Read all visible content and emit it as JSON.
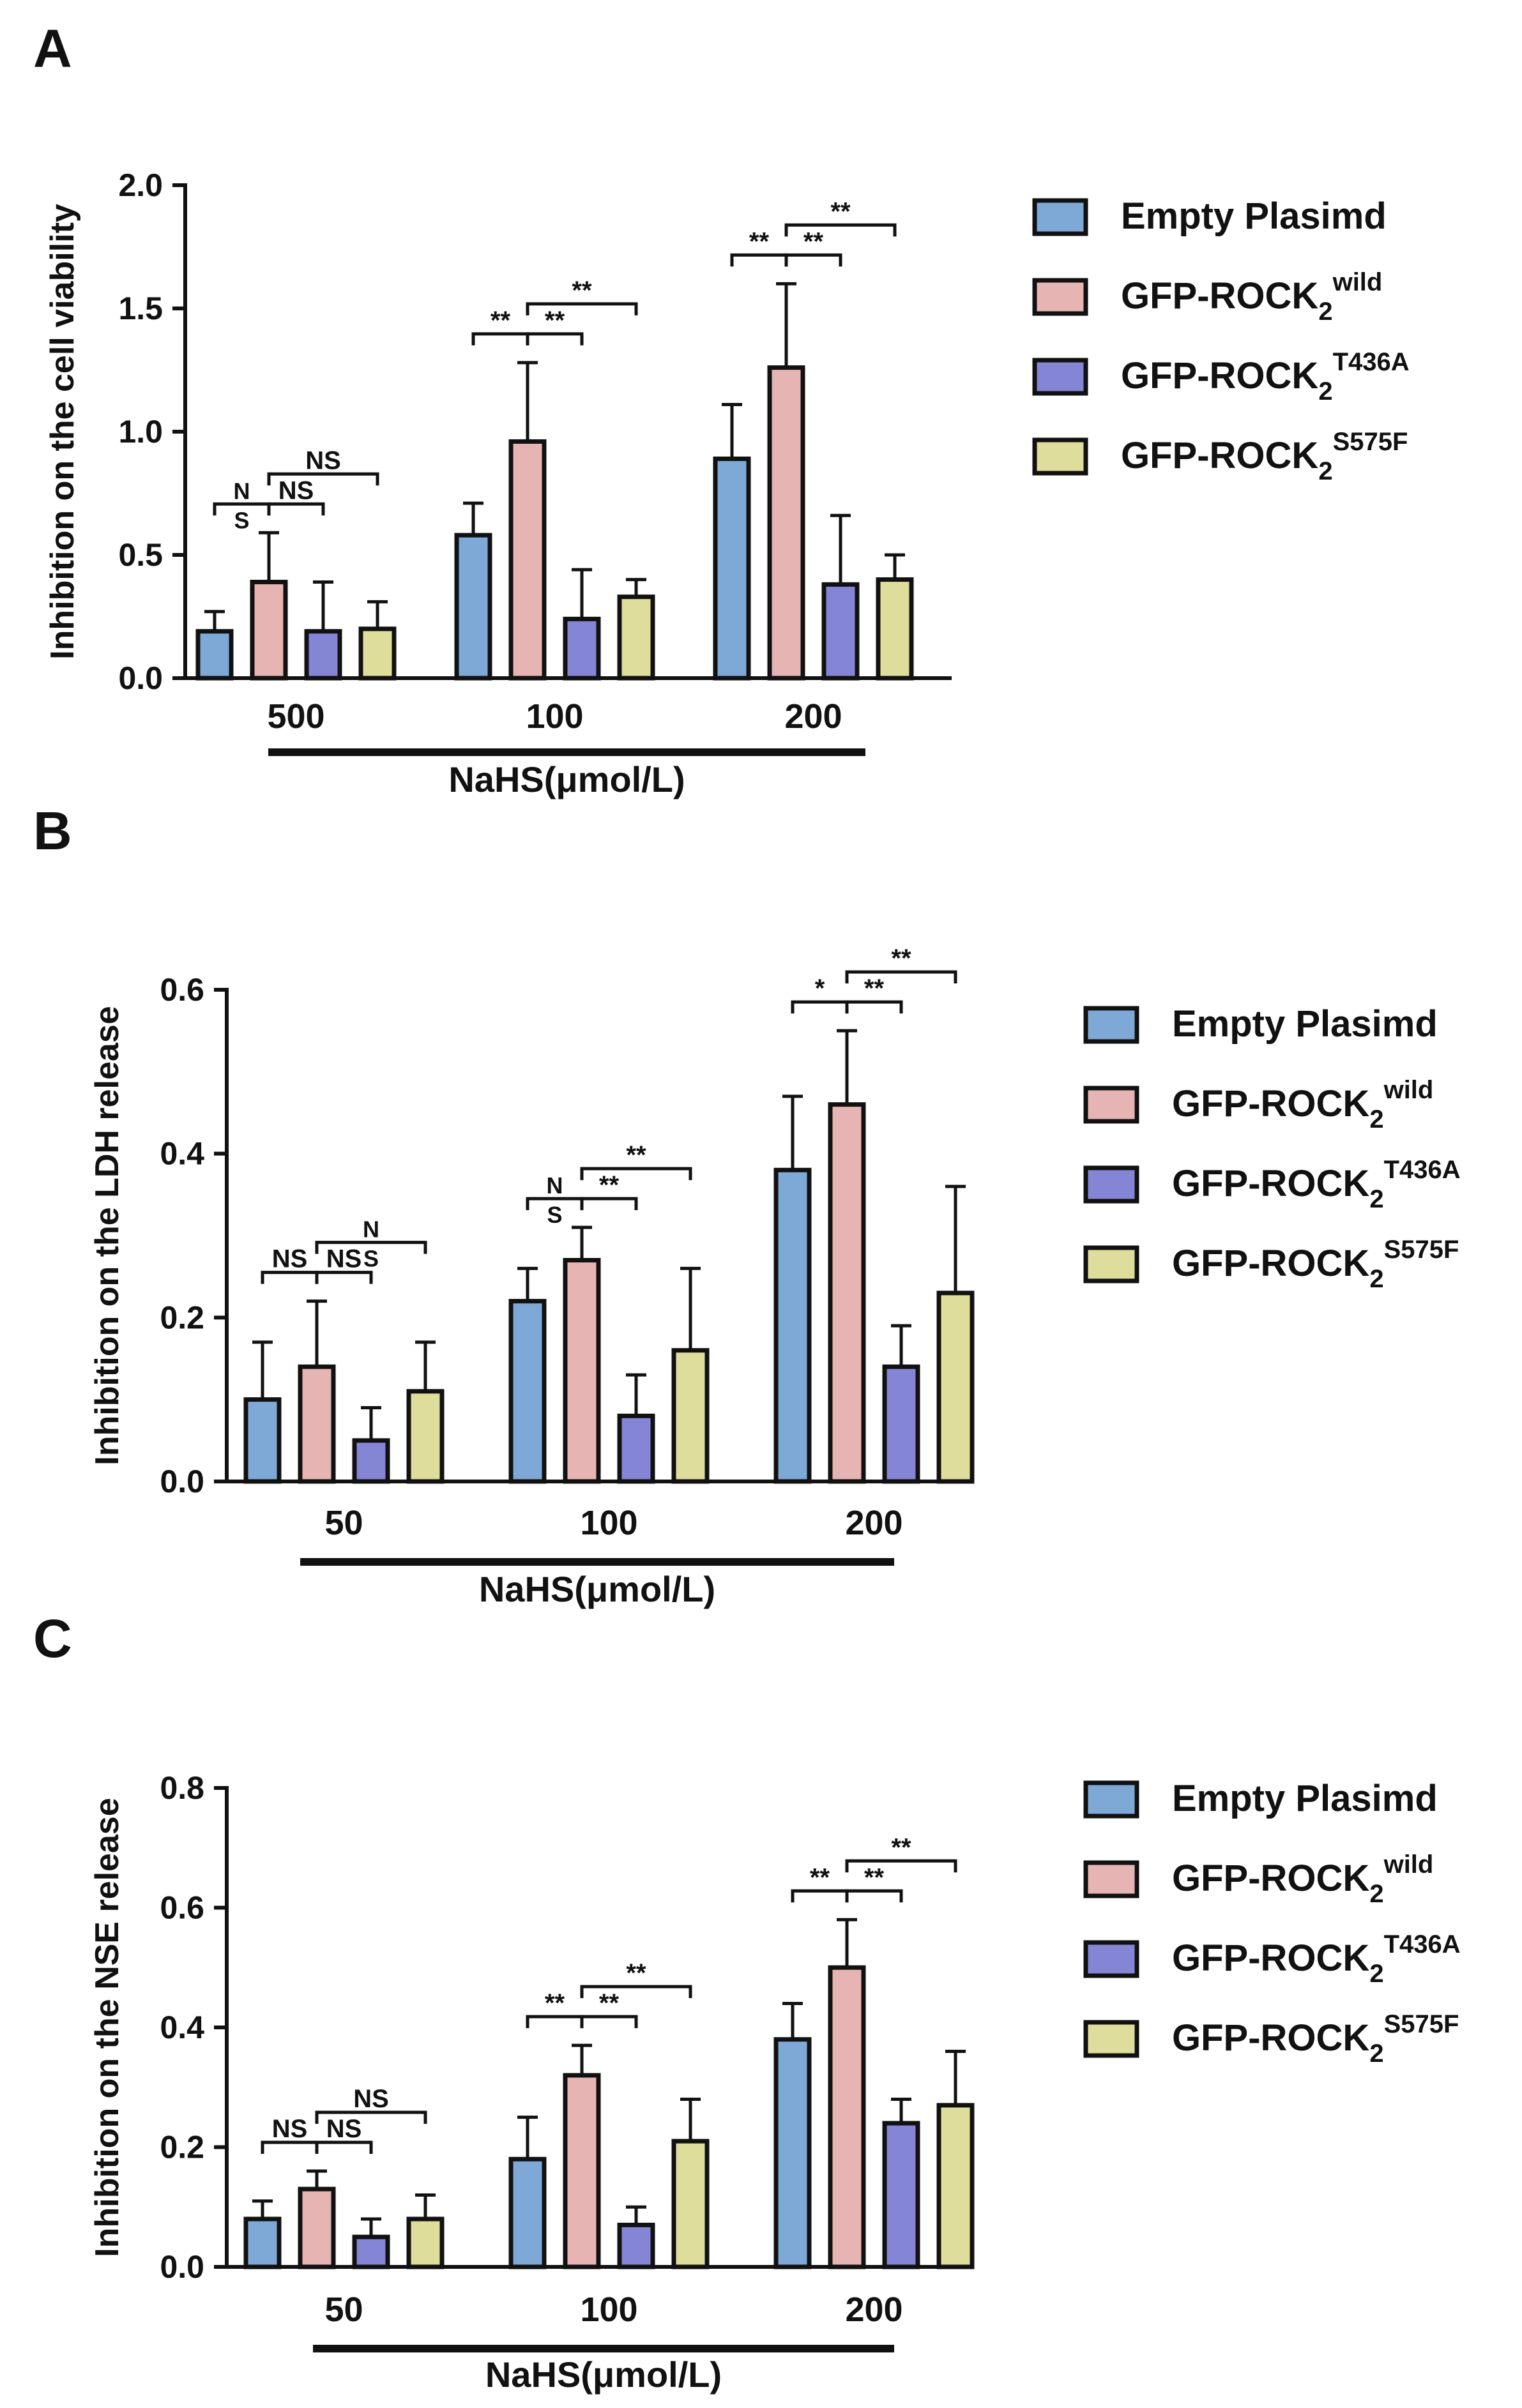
{
  "figure": {
    "x_title": "NaHS(μmol/L)",
    "legend": [
      {
        "base": "Empty Plasimd",
        "sup": ""
      },
      {
        "base": "GFP-ROCK",
        "sub": "2",
        "sup": "wild"
      },
      {
        "base": "GFP-ROCK",
        "sub": "2",
        "sup": "T436A"
      },
      {
        "base": "GFP-ROCK",
        "sub": "2",
        "sup": "S575F"
      }
    ],
    "colors": [
      "#7ea9d6",
      "#e6b5b3",
      "#8585d6",
      "#dedd9c"
    ]
  },
  "chart_data": [
    {
      "panel": "A",
      "type": "bar",
      "ylabel": "Inhibition on the cell viability",
      "xlabel": "NaHS(μmol/L)",
      "ylim": [
        0,
        2.0
      ],
      "yticks": [
        "0.0",
        "0.5",
        "1.0",
        "1.5",
        "2.0"
      ],
      "categories": [
        "500",
        "100",
        "200"
      ],
      "series": [
        {
          "name": "Empty Plasimd",
          "values": [
            0.19,
            0.58,
            0.89
          ],
          "errors": [
            0.08,
            0.13,
            0.22
          ]
        },
        {
          "name": "GFP-ROCK2 wild",
          "values": [
            0.39,
            0.96,
            1.26
          ],
          "errors": [
            0.2,
            0.32,
            0.34
          ]
        },
        {
          "name": "GFP-ROCK2 T436A",
          "values": [
            0.19,
            0.24,
            0.38
          ],
          "errors": [
            0.2,
            0.2,
            0.28
          ]
        },
        {
          "name": "GFP-ROCK2 S575F",
          "values": [
            0.2,
            0.33,
            0.4
          ],
          "errors": [
            0.11,
            0.07,
            0.1
          ]
        }
      ],
      "annotations": [
        {
          "group": 0,
          "from": 0,
          "to": 1,
          "level": 0,
          "label": "N\nS"
        },
        {
          "group": 0,
          "from": 1,
          "to": 2,
          "level": 0,
          "label": "NS"
        },
        {
          "group": 0,
          "from": 1,
          "to": 3,
          "level": 1,
          "label": "NS"
        },
        {
          "group": 1,
          "from": 0,
          "to": 1,
          "level": 0,
          "label": "**"
        },
        {
          "group": 1,
          "from": 1,
          "to": 2,
          "level": 0,
          "label": "**"
        },
        {
          "group": 1,
          "from": 1,
          "to": 3,
          "level": 1,
          "label": "**"
        },
        {
          "group": 2,
          "from": 0,
          "to": 1,
          "level": 0,
          "label": "**"
        },
        {
          "group": 2,
          "from": 1,
          "to": 2,
          "level": 0,
          "label": "**"
        },
        {
          "group": 2,
          "from": 1,
          "to": 3,
          "level": 1,
          "label": "**"
        }
      ]
    },
    {
      "panel": "B",
      "type": "bar",
      "ylabel": "Inhibition on the LDH release",
      "xlabel": "NaHS(μmol/L)",
      "ylim": [
        0,
        0.6
      ],
      "yticks": [
        "0.0",
        "0.2",
        "0.4",
        "0.6"
      ],
      "categories": [
        "50",
        "100",
        "200"
      ],
      "series": [
        {
          "name": "Empty Plasimd",
          "values": [
            0.1,
            0.22,
            0.38
          ],
          "errors": [
            0.07,
            0.04,
            0.09
          ]
        },
        {
          "name": "GFP-ROCK2 wild",
          "values": [
            0.14,
            0.27,
            0.46
          ],
          "errors": [
            0.08,
            0.04,
            0.09
          ]
        },
        {
          "name": "GFP-ROCK2 T436A",
          "values": [
            0.05,
            0.08,
            0.14
          ],
          "errors": [
            0.04,
            0.05,
            0.05
          ]
        },
        {
          "name": "GFP-ROCK2 S575F",
          "values": [
            0.11,
            0.16,
            0.23
          ],
          "errors": [
            0.06,
            0.1,
            0.13
          ]
        }
      ],
      "annotations": [
        {
          "group": 0,
          "from": 0,
          "to": 1,
          "level": 0,
          "label": "NS"
        },
        {
          "group": 0,
          "from": 1,
          "to": 2,
          "level": 0,
          "label": "NS"
        },
        {
          "group": 0,
          "from": 1,
          "to": 3,
          "level": 1,
          "label": "N\nS"
        },
        {
          "group": 1,
          "from": 0,
          "to": 1,
          "level": 0,
          "label": "N\nS"
        },
        {
          "group": 1,
          "from": 1,
          "to": 2,
          "level": 0,
          "label": "**"
        },
        {
          "group": 1,
          "from": 1,
          "to": 3,
          "level": 1,
          "label": "**"
        },
        {
          "group": 2,
          "from": 0,
          "to": 1,
          "level": 0,
          "label": "*"
        },
        {
          "group": 2,
          "from": 1,
          "to": 2,
          "level": 0,
          "label": "**"
        },
        {
          "group": 2,
          "from": 1,
          "to": 3,
          "level": 1,
          "label": "**"
        }
      ]
    },
    {
      "panel": "C",
      "type": "bar",
      "ylabel": "Inhibition on the NSE release",
      "xlabel": "NaHS(μmol/L)",
      "ylim": [
        0,
        0.8
      ],
      "yticks": [
        "0.0",
        "0.2",
        "0.4",
        "0.6",
        "0.8"
      ],
      "categories": [
        "50",
        "100",
        "200"
      ],
      "series": [
        {
          "name": "Empty Plasimd",
          "values": [
            0.08,
            0.18,
            0.38
          ],
          "errors": [
            0.03,
            0.07,
            0.06
          ]
        },
        {
          "name": "GFP-ROCK2 wild",
          "values": [
            0.13,
            0.32,
            0.5
          ],
          "errors": [
            0.03,
            0.05,
            0.08
          ]
        },
        {
          "name": "GFP-ROCK2 T436A",
          "values": [
            0.05,
            0.07,
            0.24
          ],
          "errors": [
            0.03,
            0.03,
            0.04
          ]
        },
        {
          "name": "GFP-ROCK2 S575F",
          "values": [
            0.08,
            0.21,
            0.27
          ],
          "errors": [
            0.04,
            0.07,
            0.09
          ]
        }
      ],
      "annotations": [
        {
          "group": 0,
          "from": 0,
          "to": 1,
          "level": 0,
          "label": "NS"
        },
        {
          "group": 0,
          "from": 1,
          "to": 2,
          "level": 0,
          "label": "NS"
        },
        {
          "group": 0,
          "from": 1,
          "to": 3,
          "level": 1,
          "label": "NS"
        },
        {
          "group": 1,
          "from": 0,
          "to": 1,
          "level": 0,
          "label": "**"
        },
        {
          "group": 1,
          "from": 1,
          "to": 2,
          "level": 0,
          "label": "**"
        },
        {
          "group": 1,
          "from": 1,
          "to": 3,
          "level": 1,
          "label": "**"
        },
        {
          "group": 2,
          "from": 0,
          "to": 1,
          "level": 0,
          "label": "**"
        },
        {
          "group": 2,
          "from": 1,
          "to": 2,
          "level": 0,
          "label": "**"
        },
        {
          "group": 2,
          "from": 1,
          "to": 3,
          "level": 1,
          "label": "**"
        }
      ]
    }
  ]
}
